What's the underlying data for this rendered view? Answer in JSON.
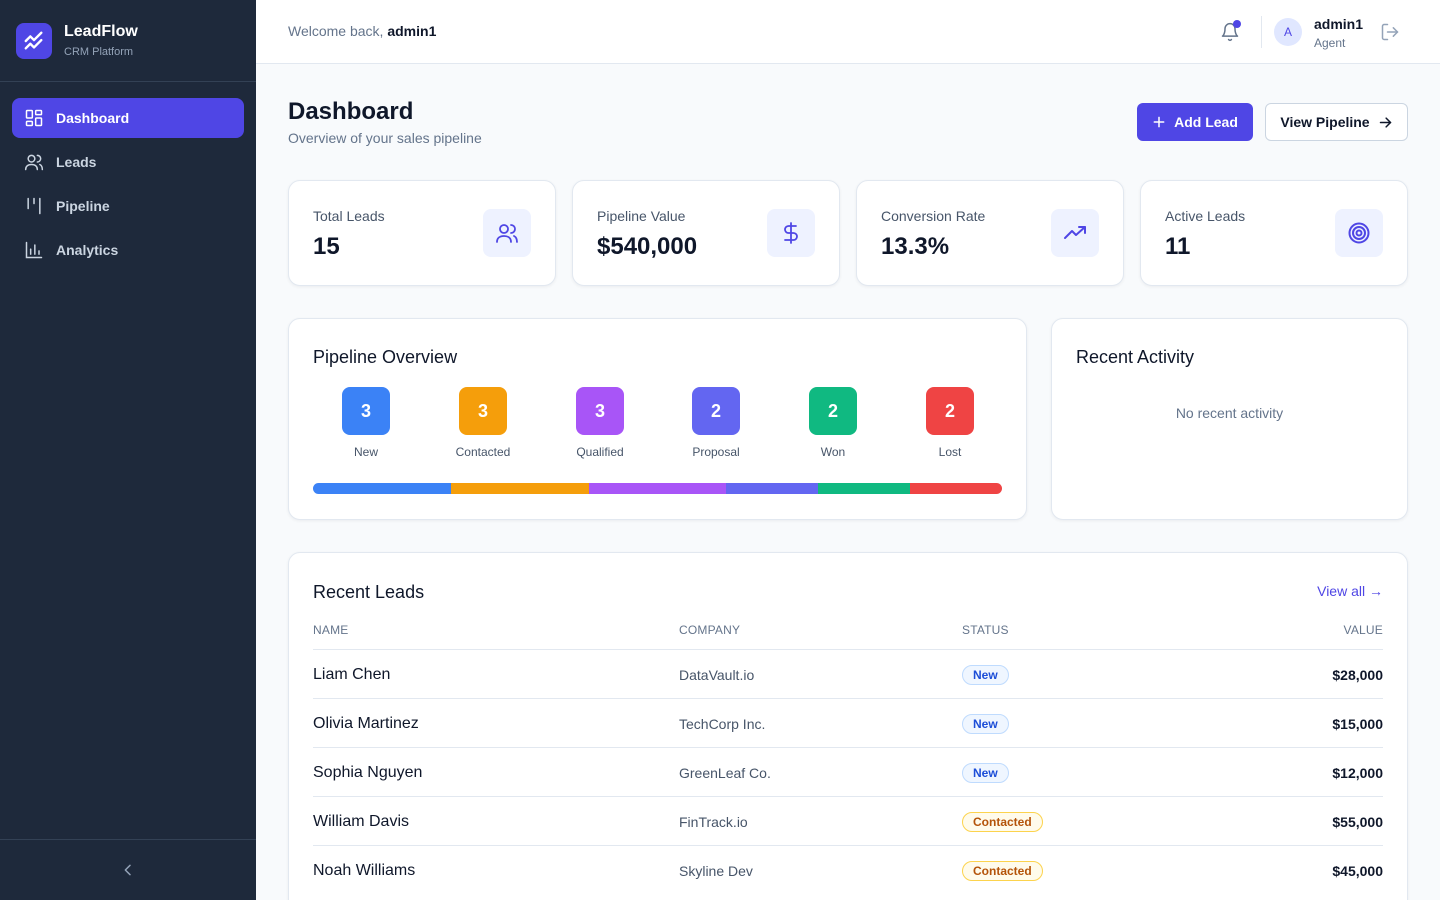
{
  "brand": {
    "name": "LeadFlow",
    "subtitle": "CRM Platform"
  },
  "sidebar": {
    "items": [
      {
        "label": "Dashboard",
        "icon": "dashboard-icon",
        "active": true
      },
      {
        "label": "Leads",
        "icon": "users-icon",
        "active": false
      },
      {
        "label": "Pipeline",
        "icon": "pipeline-icon",
        "active": false
      },
      {
        "label": "Analytics",
        "icon": "bar-chart-icon",
        "active": false
      }
    ],
    "collapse_icon": "chevron-left-icon"
  },
  "header": {
    "welcome_prefix": "Welcome back, ",
    "username": "admin1",
    "avatar_initial": "A",
    "user_name": "admin1",
    "user_role": "Agent",
    "has_notification": true
  },
  "page": {
    "title": "Dashboard",
    "subtitle": "Overview of your sales pipeline",
    "add_lead_label": "Add Lead",
    "view_pipeline_label": "View Pipeline"
  },
  "stats": [
    {
      "label": "Total Leads",
      "value": "15",
      "icon": "users-icon"
    },
    {
      "label": "Pipeline Value",
      "value": "$540,000",
      "icon": "dollar-icon"
    },
    {
      "label": "Conversion Rate",
      "value": "13.3%",
      "icon": "trending-up-icon"
    },
    {
      "label": "Active Leads",
      "value": "11",
      "icon": "target-icon"
    }
  ],
  "pipeline": {
    "title": "Pipeline Overview",
    "stages": [
      {
        "label": "New",
        "count": "3",
        "color": "#3b82f6",
        "share": 3
      },
      {
        "label": "Contacted",
        "count": "3",
        "color": "#f59e0b",
        "share": 3
      },
      {
        "label": "Qualified",
        "count": "3",
        "color": "#a855f7",
        "share": 3
      },
      {
        "label": "Proposal",
        "count": "2",
        "color": "#6366f1",
        "share": 2
      },
      {
        "label": "Won",
        "count": "2",
        "color": "#10b981",
        "share": 2
      },
      {
        "label": "Lost",
        "count": "2",
        "color": "#ef4444",
        "share": 2
      }
    ]
  },
  "activity": {
    "title": "Recent Activity",
    "empty_text": "No recent activity"
  },
  "recent_leads": {
    "title": "Recent Leads",
    "view_all_label": "View all →",
    "columns": [
      "NAME",
      "COMPANY",
      "STATUS",
      "VALUE"
    ],
    "rows": [
      {
        "name": "Liam Chen",
        "company": "DataVault.io",
        "status": "New",
        "value": "$28,000"
      },
      {
        "name": "Olivia Martinez",
        "company": "TechCorp Inc.",
        "status": "New",
        "value": "$15,000"
      },
      {
        "name": "Sophia Nguyen",
        "company": "GreenLeaf Co.",
        "status": "New",
        "value": "$12,000"
      },
      {
        "name": "William Davis",
        "company": "FinTrack.io",
        "status": "Contacted",
        "value": "$55,000"
      },
      {
        "name": "Noah Williams",
        "company": "Skyline Dev",
        "status": "Contacted",
        "value": "$45,000"
      }
    ]
  },
  "colors": {
    "accent": "#4f46e5",
    "sidebar_bg": "#1e293b",
    "status_new_bg": "#eff6ff",
    "status_new_text": "#1d4ed8",
    "status_contacted_bg": "#fffbeb",
    "status_contacted_text": "#b45309"
  }
}
